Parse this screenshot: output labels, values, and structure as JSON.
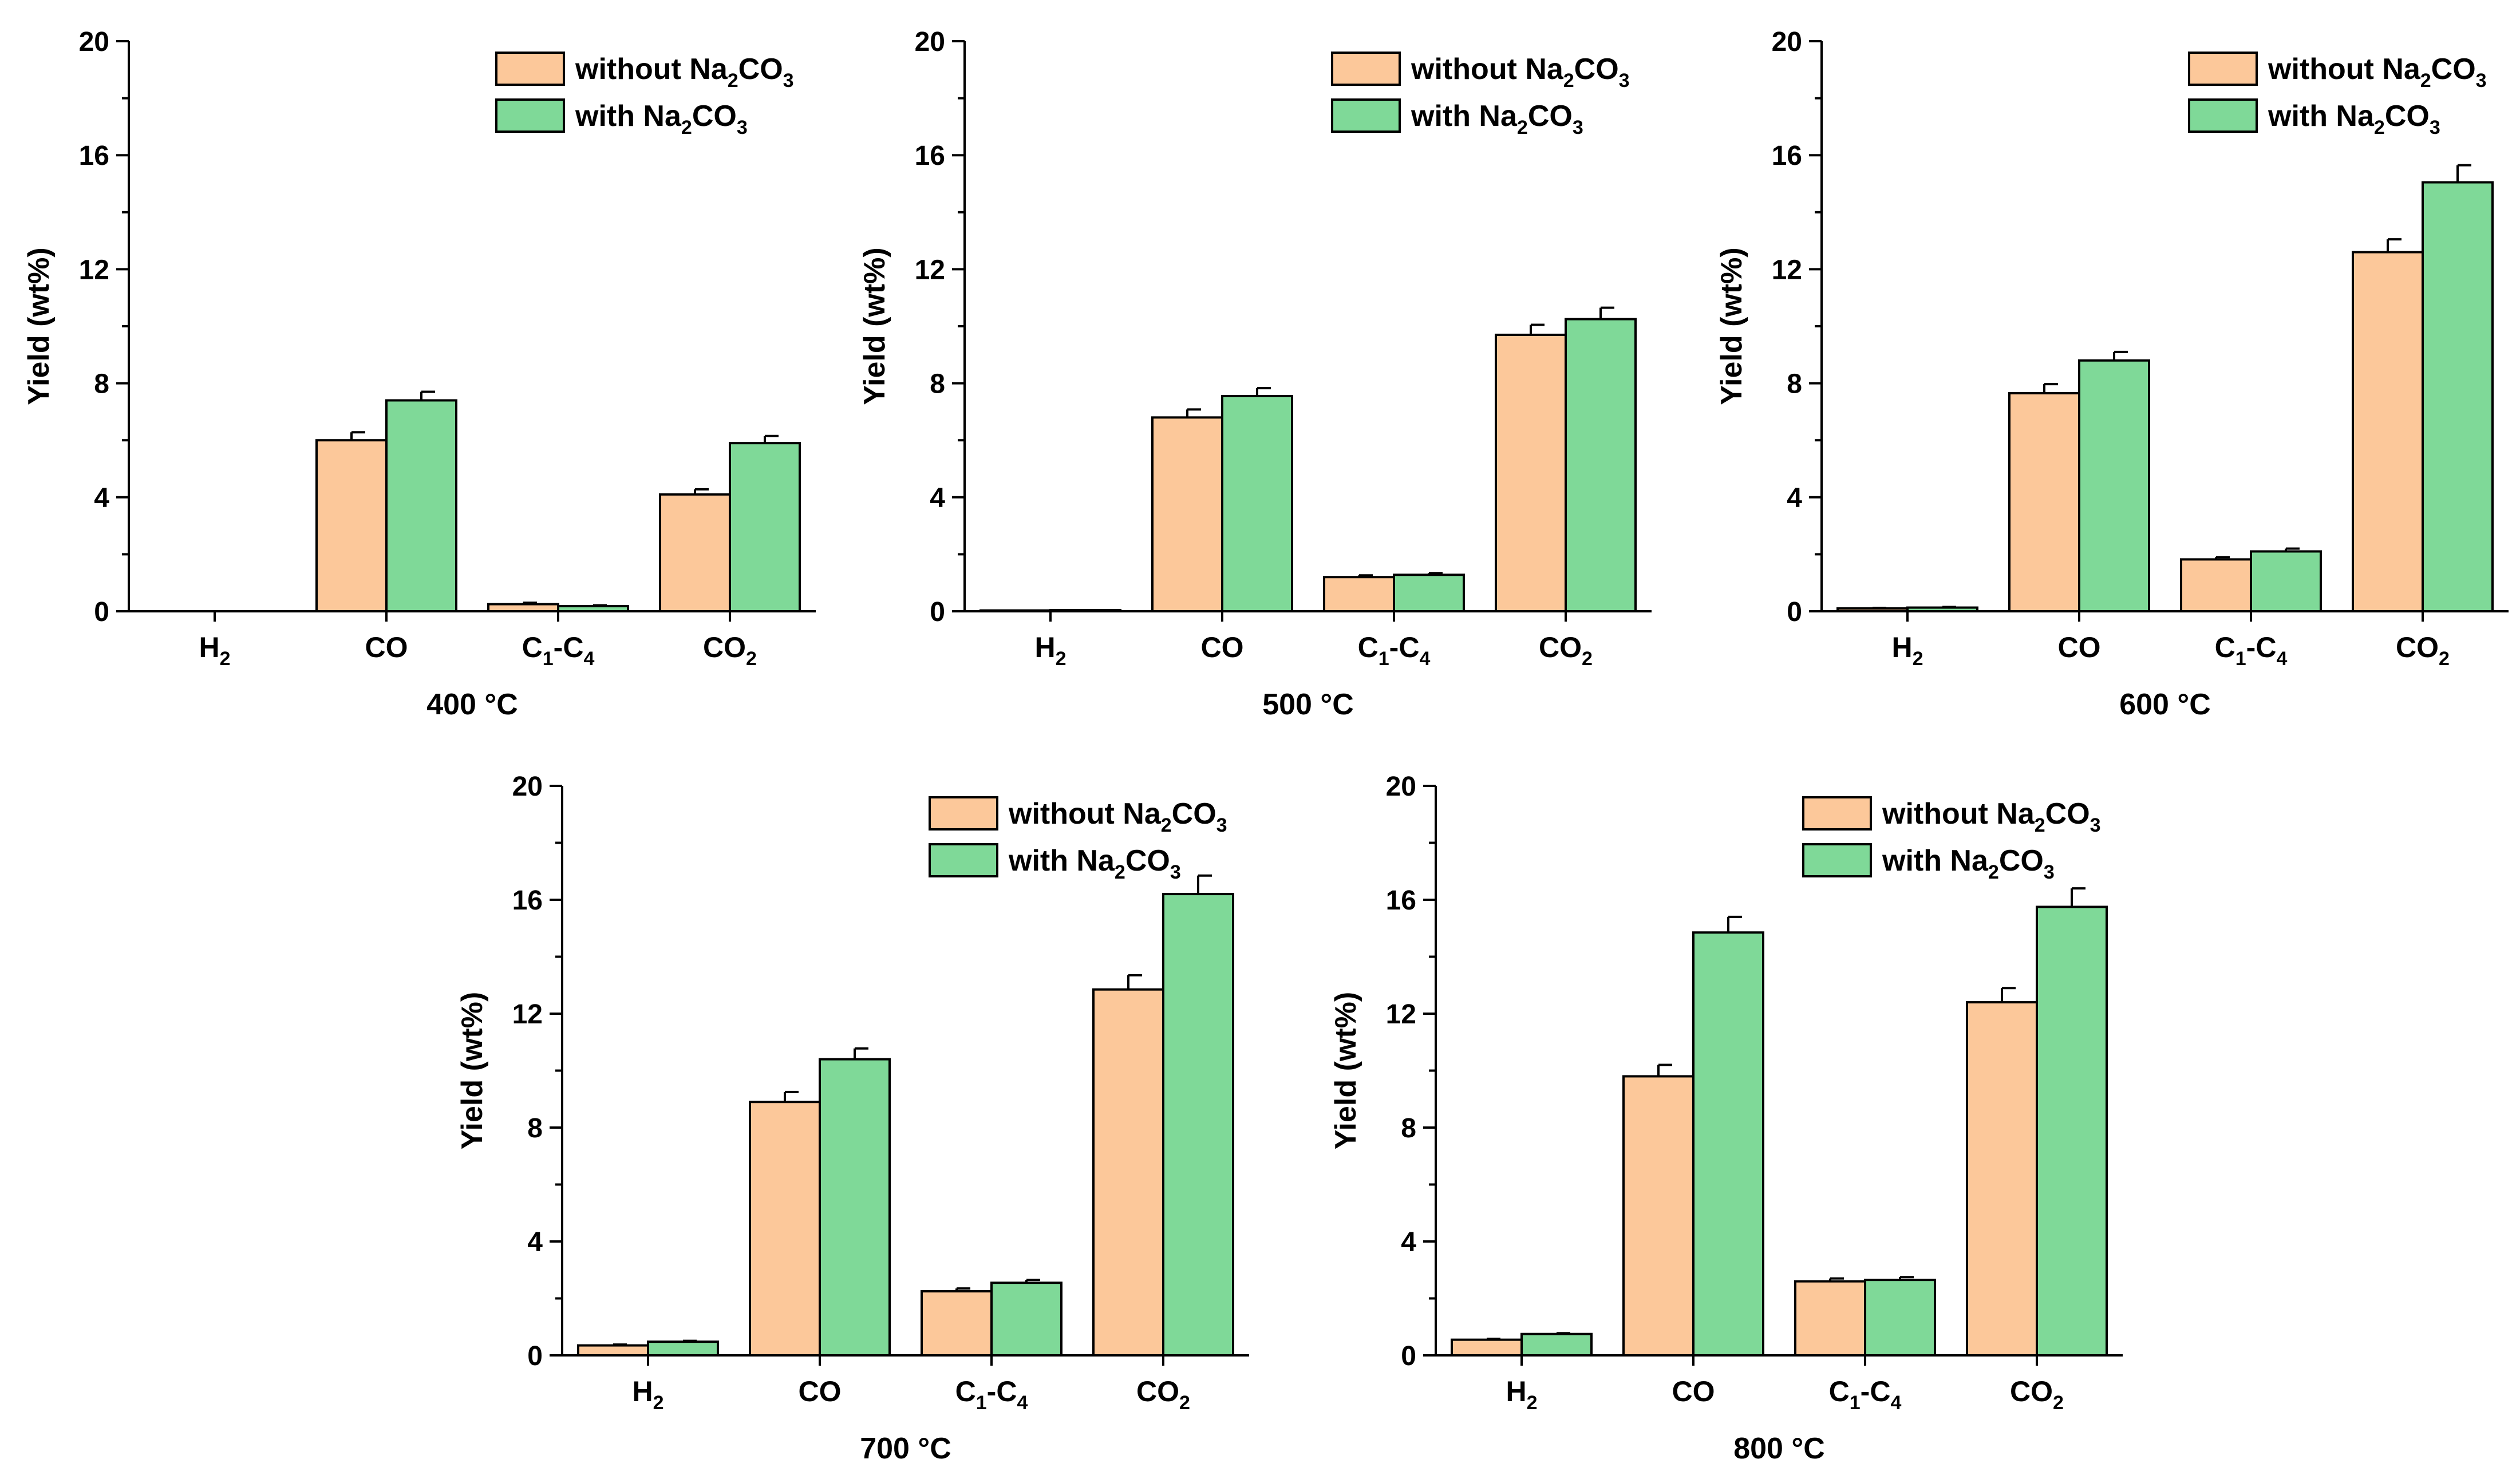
{
  "figure": {
    "ylabel": "Yield (wt%)",
    "legend_position": "top-right",
    "legend_entries": [
      {
        "name": "without Na2CO3",
        "prefix": "without Na",
        "sub1": "2",
        "mid": "CO",
        "sub2": "3",
        "color": "#FCC89A"
      },
      {
        "name": "with Na2CO3",
        "prefix": "with Na",
        "sub1": "2",
        "mid": "CO",
        "sub2": "3",
        "color": "#7FD998"
      }
    ],
    "category_labels": [
      {
        "main": "H",
        "sub": "2"
      },
      {
        "main": "CO",
        "sub": ""
      },
      {
        "main": "C",
        "sub": "1",
        "main2": "-C",
        "sub2": "4"
      },
      {
        "main": "CO",
        "sub": "2"
      }
    ],
    "y_ticks": [
      "0",
      "4",
      "8",
      "12",
      "16",
      "20"
    ]
  },
  "chart_data": [
    {
      "type": "bar",
      "title": "400 °C",
      "categories": [
        "H2",
        "CO",
        "C1-C4",
        "CO2"
      ],
      "ylabel": "Yield (wt%)",
      "ylim": [
        0,
        20
      ],
      "series": [
        {
          "name": "without Na2CO3",
          "values": [
            0.0,
            6.0,
            0.25,
            4.1
          ],
          "errors": [
            0.0,
            0.28,
            0.05,
            0.18
          ]
        },
        {
          "name": "with Na2CO3",
          "values": [
            0.0,
            7.4,
            0.18,
            5.9
          ],
          "errors": [
            0.0,
            0.3,
            0.03,
            0.25
          ]
        }
      ]
    },
    {
      "type": "bar",
      "title": "500 °C",
      "categories": [
        "H2",
        "CO",
        "C1-C4",
        "CO2"
      ],
      "ylabel": "Yield (wt%)",
      "ylim": [
        0,
        20
      ],
      "series": [
        {
          "name": "without Na2CO3",
          "values": [
            0.03,
            6.8,
            1.2,
            9.7
          ],
          "errors": [
            0.0,
            0.28,
            0.06,
            0.35
          ]
        },
        {
          "name": "with Na2CO3",
          "values": [
            0.04,
            7.55,
            1.28,
            10.25
          ],
          "errors": [
            0.0,
            0.28,
            0.06,
            0.4
          ]
        }
      ]
    },
    {
      "type": "bar",
      "title": "600 °C",
      "categories": [
        "H2",
        "CO",
        "C1-C4",
        "CO2"
      ],
      "ylabel": "Yield (wt%)",
      "ylim": [
        0,
        20
      ],
      "series": [
        {
          "name": "without Na2CO3",
          "values": [
            0.1,
            7.65,
            1.82,
            12.6
          ],
          "errors": [
            0.02,
            0.32,
            0.08,
            0.45
          ]
        },
        {
          "name": "with Na2CO3",
          "values": [
            0.13,
            8.8,
            2.1,
            15.05
          ],
          "errors": [
            0.02,
            0.3,
            0.1,
            0.6
          ]
        }
      ]
    },
    {
      "type": "bar",
      "title": "700 °C",
      "categories": [
        "H2",
        "CO",
        "C1-C4",
        "CO2"
      ],
      "ylabel": "Yield (wt%)",
      "ylim": [
        0,
        20
      ],
      "series": [
        {
          "name": "without Na2CO3",
          "values": [
            0.35,
            8.9,
            2.25,
            12.85
          ],
          "errors": [
            0.03,
            0.35,
            0.1,
            0.5
          ]
        },
        {
          "name": "with Na2CO3",
          "values": [
            0.48,
            10.4,
            2.55,
            16.2
          ],
          "errors": [
            0.03,
            0.38,
            0.1,
            0.65
          ]
        }
      ]
    },
    {
      "type": "bar",
      "title": "800 °C",
      "categories": [
        "H2",
        "CO",
        "C1-C4",
        "CO2"
      ],
      "ylabel": "Yield (wt%)",
      "ylim": [
        0,
        20
      ],
      "series": [
        {
          "name": "without Na2CO3",
          "values": [
            0.55,
            9.8,
            2.6,
            12.4
          ],
          "errors": [
            0.03,
            0.4,
            0.1,
            0.5
          ]
        },
        {
          "name": "with Na2CO3",
          "values": [
            0.75,
            14.85,
            2.65,
            15.75
          ],
          "errors": [
            0.03,
            0.55,
            0.1,
            0.65
          ]
        }
      ]
    }
  ]
}
